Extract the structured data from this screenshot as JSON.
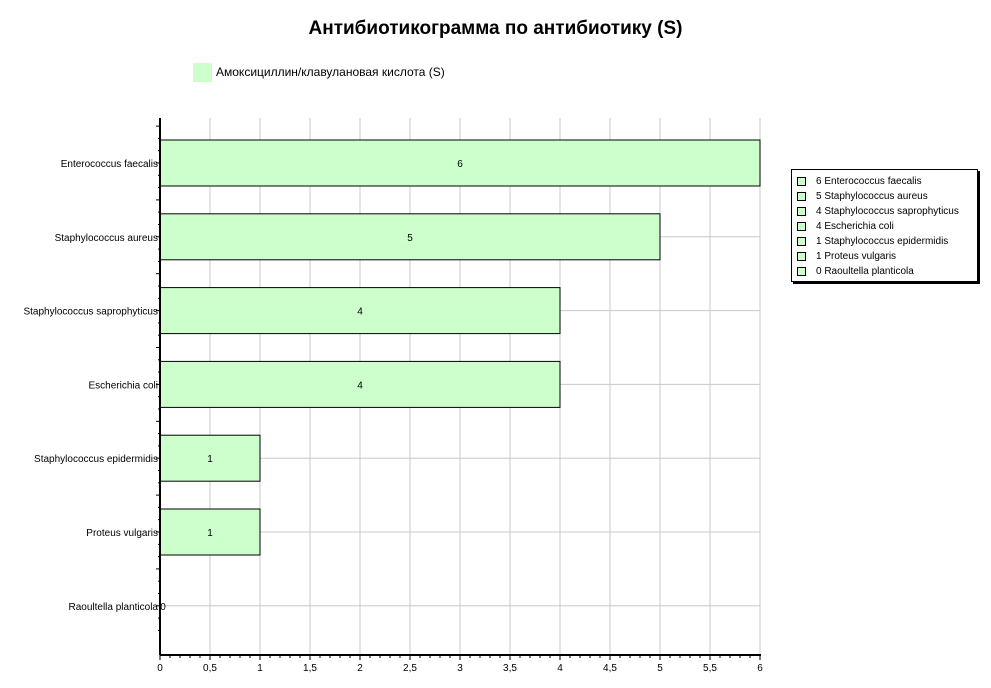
{
  "chart_data": {
    "type": "bar",
    "orientation": "horizontal",
    "title": "Антибиотикограмма по антибиотику (S)",
    "categories": [
      "Enterococcus faecalis",
      "Staphylococcus aureus",
      "Staphylococcus saprophyticus",
      "Escherichia coli",
      "Staphylococcus epidermidis",
      "Proteus vulgaris",
      "Raoultella planticola"
    ],
    "series": [
      {
        "name": "Амоксициллин/клавулановая кислота  (S)",
        "values": [
          6,
          5,
          4,
          4,
          1,
          1,
          0
        ],
        "color": "#ccffcc"
      }
    ],
    "data_labels": [
      "6",
      "5",
      "4",
      "4",
      "1",
      "1",
      "0"
    ],
    "xlim": [
      0,
      6
    ],
    "x_ticks": [
      "0",
      "0,5",
      "1",
      "1,5",
      "2",
      "2,5",
      "3",
      "3,5",
      "4",
      "4,5",
      "5",
      "5,5",
      "6"
    ],
    "grid": true,
    "legend": {
      "position": "top-left",
      "entries": [
        "Амоксициллин/клавулановая кислота  (S)"
      ]
    },
    "side_legend": {
      "position": "right",
      "entries": [
        "6 Enterococcus faecalis",
        "5 Staphylococcus aureus",
        "4 Staphylococcus saprophyticus",
        "4 Escherichia coli",
        "1 Staphylococcus epidermidis",
        "1 Proteus vulgaris",
        "0 Raoultella planticola"
      ]
    }
  }
}
